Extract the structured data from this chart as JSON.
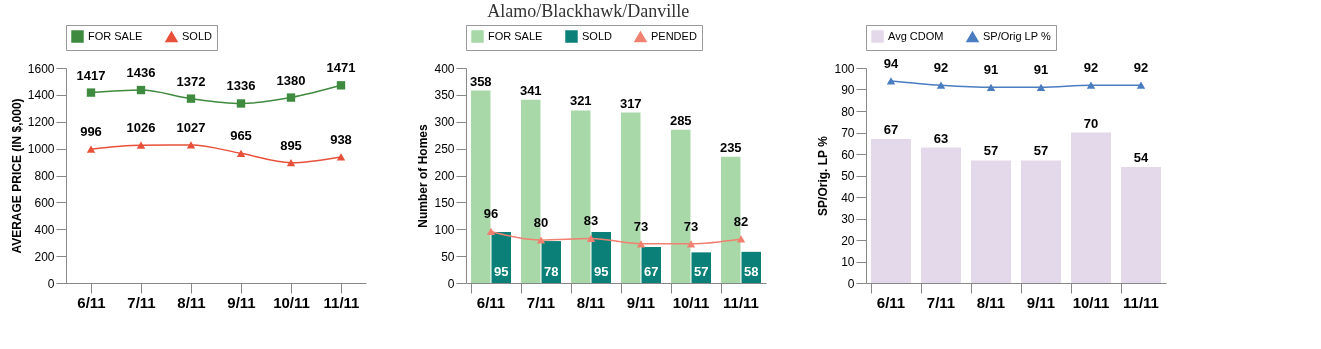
{
  "chart_data": [
    {
      "type": "line",
      "ylabel": "AVERAGE PRICE (IN $,000)",
      "categories": [
        "6/11",
        "7/11",
        "8/11",
        "9/11",
        "10/11",
        "11/11"
      ],
      "series": [
        {
          "name": "FOR SALE",
          "color": "#3e8a3e",
          "marker": "square",
          "values": [
            1417,
            1436,
            1372,
            1336,
            1380,
            1471
          ]
        },
        {
          "name": "SOLD",
          "color": "#e8503a",
          "marker": "triangle",
          "values": [
            996,
            1026,
            1027,
            965,
            895,
            938
          ]
        }
      ],
      "ylim": [
        0,
        1600
      ],
      "yticks": [
        0,
        200,
        400,
        600,
        800,
        1000,
        1200,
        1400,
        1600
      ],
      "legend": "top",
      "data_labels": true
    },
    {
      "type": "bar",
      "title": "Alamo/Blackhawk/Danville",
      "ylabel": "Number of Homes",
      "categories": [
        "6/11",
        "7/11",
        "8/11",
        "9/11",
        "10/11",
        "11/11"
      ],
      "series": [
        {
          "name": "FOR SALE",
          "color": "#a8d8a8",
          "values": [
            358,
            341,
            321,
            317,
            285,
            235
          ]
        },
        {
          "name": "SOLD",
          "color": "#0a8078",
          "values": [
            95,
            78,
            95,
            67,
            57,
            58
          ]
        },
        {
          "name": "PENDED",
          "type": "line",
          "color": "#f08070",
          "marker": "triangle",
          "values": [
            96,
            80,
            83,
            73,
            73,
            82
          ]
        }
      ],
      "ylim": [
        0,
        400
      ],
      "yticks": [
        0,
        50,
        100,
        150,
        200,
        250,
        300,
        350,
        400
      ],
      "legend": "top",
      "data_labels": true
    },
    {
      "type": "bar",
      "ylabel": "SP/Orig. LP %",
      "categories": [
        "6/11",
        "7/11",
        "8/11",
        "9/11",
        "10/11",
        "11/11"
      ],
      "series": [
        {
          "name": "Avg CDOM",
          "color": "#e4d9ea",
          "values": [
            67,
            63,
            57,
            57,
            70,
            54
          ]
        },
        {
          "name": "SP/Orig LP %",
          "type": "line",
          "color": "#4a7cc0",
          "marker": "triangle",
          "values": [
            94,
            92,
            91,
            91,
            92,
            92
          ]
        }
      ],
      "ylim": [
        0,
        100
      ],
      "yticks": [
        0,
        10,
        20,
        30,
        40,
        50,
        60,
        70,
        80,
        90,
        100
      ],
      "legend": "top",
      "data_labels": true
    }
  ]
}
